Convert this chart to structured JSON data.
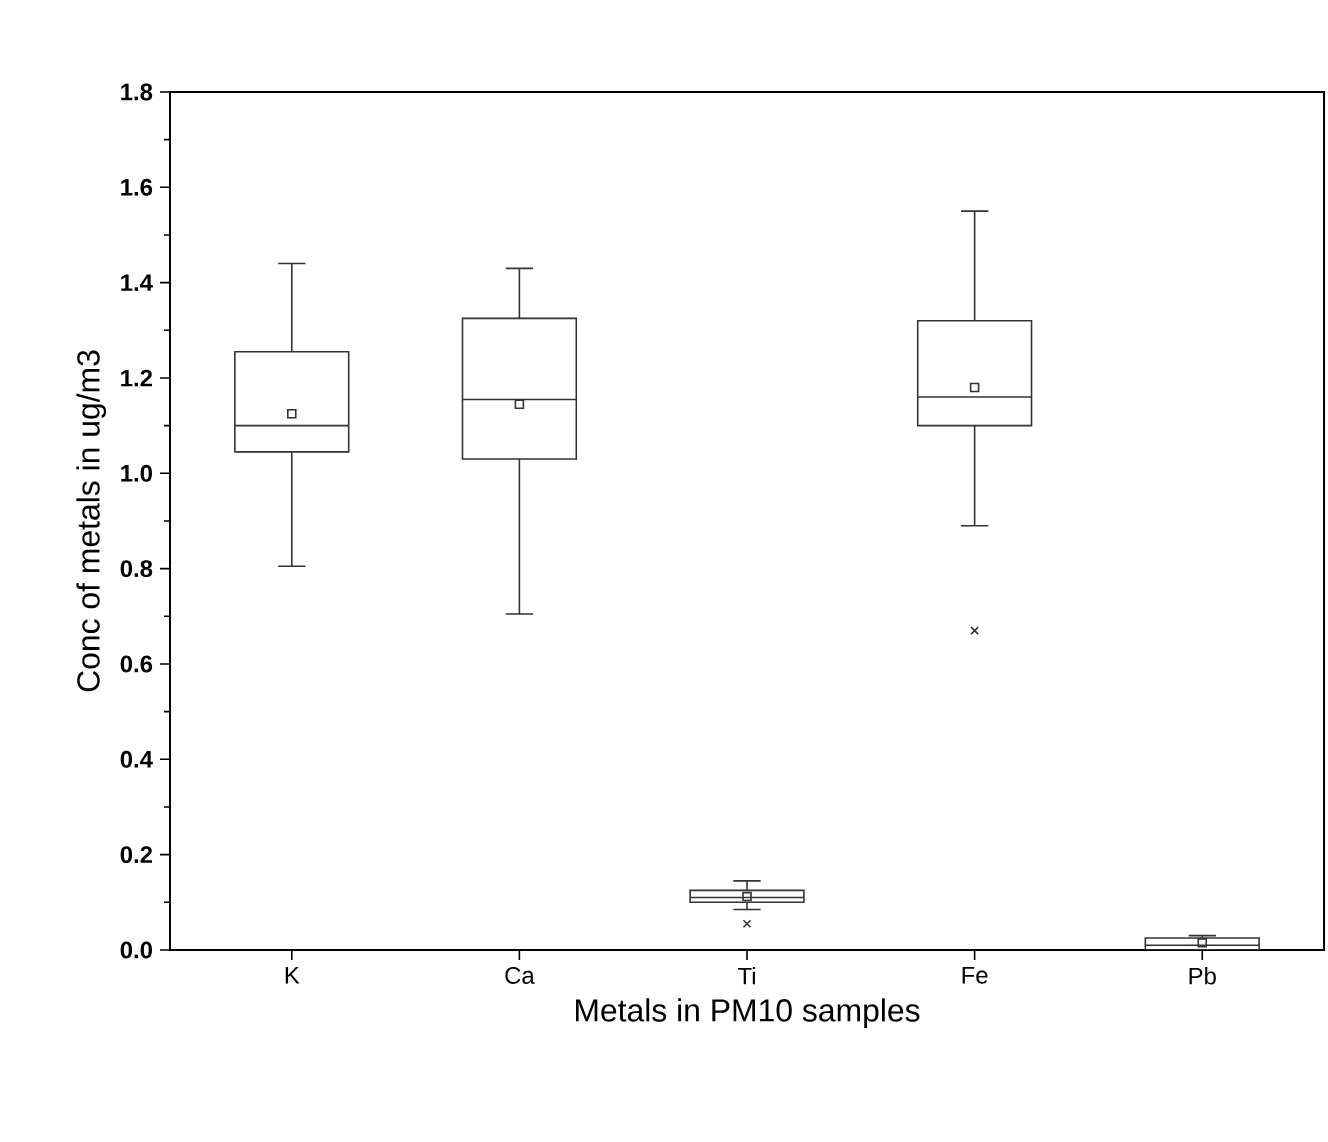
{
  "chart_data": {
    "type": "box",
    "xlabel": "Metals in PM10  samples",
    "ylabel": "Conc of metals in ug/m3",
    "categories": [
      "K",
      "Ca",
      "Ti",
      "Fe",
      "Pb"
    ],
    "color": "#333333",
    "boxes": [
      {
        "low": 0.805,
        "q1": 1.045,
        "median": 1.1,
        "q3": 1.255,
        "high": 1.44,
        "mean": 1.125
      },
      {
        "low": 0.705,
        "q1": 1.03,
        "median": 1.155,
        "q3": 1.325,
        "high": 1.43,
        "mean": 1.145
      },
      {
        "low": 0.085,
        "q1": 0.1,
        "median": 0.11,
        "q3": 0.125,
        "high": 0.145,
        "mean": 0.112,
        "outliers": [
          0.055
        ]
      },
      {
        "low": 0.89,
        "q1": 1.1,
        "median": 1.16,
        "q3": 1.32,
        "high": 1.55,
        "mean": 1.18,
        "outliers": [
          0.67
        ]
      },
      {
        "low": 0.0,
        "q1": 0.0,
        "median": 0.01,
        "q3": 0.025,
        "high": 0.03,
        "mean": 0.015
      }
    ],
    "ylim": [
      0,
      1.8
    ],
    "yticks": [
      {
        "value": 0,
        "label": "0.0"
      },
      0.2,
      0.4,
      0.6,
      0.8,
      {
        "value": 1,
        "label": "1.0"
      },
      1.2,
      1.4,
      1.6,
      1.8
    ],
    "line_style": "solid"
  }
}
